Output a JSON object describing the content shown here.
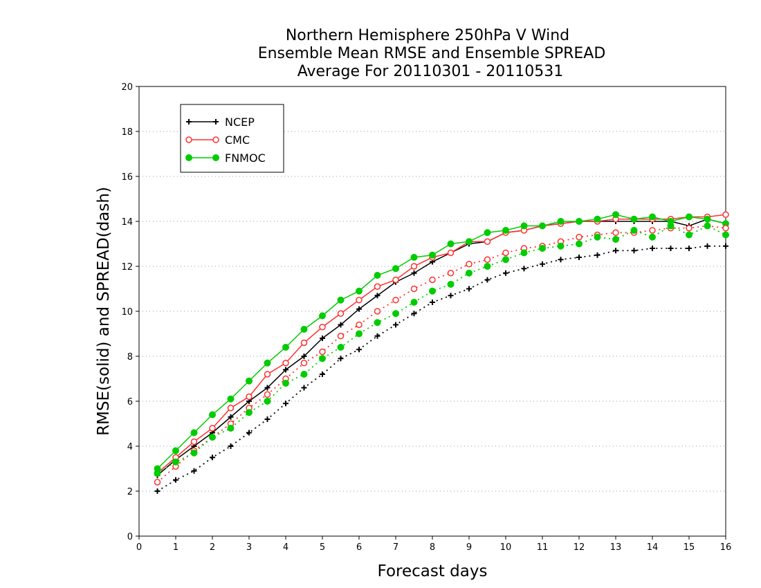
{
  "chart_data": {
    "type": "line",
    "title": [
      "Northern Hemisphere 250hPa V Wind",
      "Ensemble Mean RMSE and Ensemble SPREAD",
      "Average For 20110301 - 20110531"
    ],
    "xlabel": "Forecast days",
    "ylabel": "RMSE(solid) and SPREAD(dash)",
    "xlim": [
      0,
      16
    ],
    "ylim": [
      0,
      20
    ],
    "xticks": [
      "0",
      "1",
      "2",
      "3",
      "4",
      "5",
      "6",
      "7",
      "8",
      "9",
      "10",
      "11",
      "12",
      "13",
      "14",
      "15",
      "16"
    ],
    "yticks": [
      "0",
      "2",
      "4",
      "6",
      "8",
      "10",
      "12",
      "14",
      "16",
      "18",
      "20"
    ],
    "grid": "horizontal-dotted",
    "legend_position": "top-left",
    "x": [
      0.5,
      1,
      1.5,
      2,
      2.5,
      3,
      3.5,
      4,
      4.5,
      5,
      5.5,
      6,
      6.5,
      7,
      7.5,
      8,
      8.5,
      9,
      9.5,
      10,
      10.5,
      11,
      11.5,
      12,
      12.5,
      13,
      13.5,
      14,
      14.5,
      15,
      15.5,
      16
    ],
    "series": [
      {
        "name": "NCEP",
        "kind": "rmse",
        "color": "#000000",
        "marker": "plus",
        "values": [
          2.7,
          3.4,
          4.0,
          4.6,
          5.3,
          6.0,
          6.6,
          7.4,
          8.0,
          8.8,
          9.4,
          10.1,
          10.7,
          11.3,
          11.7,
          12.2,
          12.6,
          13.0,
          13.1,
          13.5,
          13.6,
          13.8,
          13.9,
          14.0,
          14.0,
          14.0,
          14.0,
          14.0,
          14.0,
          13.8,
          14.1,
          13.9
        ]
      },
      {
        "name": "CMC",
        "kind": "rmse",
        "color": "#ff3030",
        "marker": "circle",
        "values": [
          2.8,
          3.5,
          4.2,
          4.8,
          5.7,
          6.2,
          7.2,
          7.7,
          8.6,
          9.3,
          9.9,
          10.5,
          11.1,
          11.4,
          12.0,
          12.4,
          12.6,
          13.1,
          13.1,
          13.5,
          13.6,
          13.8,
          13.9,
          14.0,
          14.0,
          14.1,
          14.1,
          14.1,
          14.1,
          14.2,
          14.2,
          14.3
        ]
      },
      {
        "name": "FNMOC",
        "kind": "rmse",
        "color": "#00cc00",
        "marker": "dot",
        "values": [
          3.0,
          3.8,
          4.6,
          5.4,
          6.1,
          6.9,
          7.7,
          8.4,
          9.2,
          9.8,
          10.5,
          10.9,
          11.6,
          11.9,
          12.4,
          12.5,
          13.0,
          13.1,
          13.5,
          13.6,
          13.8,
          13.8,
          14.0,
          14.0,
          14.1,
          14.3,
          14.1,
          14.2,
          14.0,
          14.2,
          14.1,
          13.9
        ]
      },
      {
        "name": "NCEP",
        "kind": "spread",
        "color": "#000000",
        "marker": "plus",
        "values": [
          2.0,
          2.5,
          2.9,
          3.5,
          4.0,
          4.6,
          5.2,
          5.9,
          6.6,
          7.2,
          7.9,
          8.3,
          8.9,
          9.4,
          9.9,
          10.4,
          10.7,
          11.0,
          11.4,
          11.7,
          11.9,
          12.1,
          12.3,
          12.4,
          12.5,
          12.7,
          12.7,
          12.8,
          12.8,
          12.8,
          12.9,
          12.9
        ]
      },
      {
        "name": "CMC",
        "kind": "spread",
        "color": "#ff3030",
        "marker": "circle",
        "values": [
          2.4,
          3.1,
          3.8,
          4.4,
          5.0,
          5.7,
          6.3,
          7.0,
          7.7,
          8.2,
          8.9,
          9.4,
          10.0,
          10.5,
          11.0,
          11.4,
          11.7,
          12.1,
          12.3,
          12.6,
          12.8,
          12.9,
          13.1,
          13.3,
          13.4,
          13.5,
          13.5,
          13.6,
          13.7,
          13.7,
          13.8,
          13.7
        ]
      },
      {
        "name": "FNMOC",
        "kind": "spread",
        "color": "#00cc00",
        "marker": "dot",
        "values": [
          2.8,
          3.3,
          3.7,
          4.4,
          4.8,
          5.5,
          6.0,
          6.8,
          7.2,
          7.9,
          8.4,
          9.0,
          9.5,
          9.9,
          10.4,
          10.9,
          11.2,
          11.7,
          12.0,
          12.3,
          12.6,
          12.8,
          12.9,
          13.0,
          13.3,
          13.2,
          13.6,
          13.3,
          13.8,
          13.4,
          13.8,
          13.4
        ]
      }
    ],
    "legend": [
      {
        "label": "NCEP",
        "color": "#000000",
        "marker": "plus"
      },
      {
        "label": "CMC",
        "color": "#ff3030",
        "marker": "circle"
      },
      {
        "label": "FNMOC",
        "color": "#00cc00",
        "marker": "dot"
      }
    ]
  }
}
